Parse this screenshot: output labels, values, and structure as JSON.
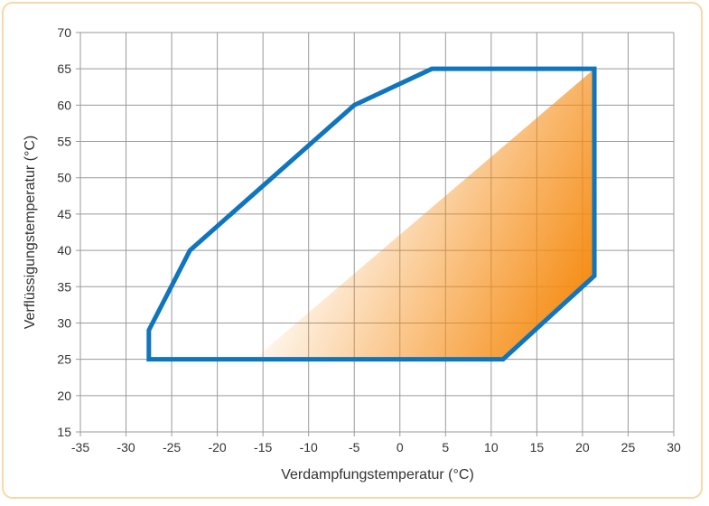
{
  "chart_data": {
    "type": "area",
    "xlabel": "Verdampfungstemperatur (°C)",
    "ylabel": "Verflüssigungstemperatur (°C)",
    "xlim": [
      -35,
      30
    ],
    "ylim": [
      15,
      70
    ],
    "x_ticks": [
      -35,
      -30,
      -25,
      -20,
      -15,
      -10,
      -5,
      0,
      5,
      10,
      15,
      20,
      25,
      30
    ],
    "y_ticks": [
      15,
      20,
      25,
      30,
      35,
      40,
      45,
      50,
      55,
      60,
      65,
      70
    ],
    "grid": true,
    "series": [
      {
        "kind": "envelope-outline",
        "points": [
          [
            -27.5,
            25
          ],
          [
            11.3,
            25
          ],
          [
            21.3,
            36.5
          ],
          [
            21.3,
            65
          ],
          [
            3.5,
            65
          ],
          [
            -5,
            60
          ],
          [
            -23,
            40
          ],
          [
            -27.5,
            29
          ],
          [
            -27.5,
            25
          ]
        ]
      },
      {
        "kind": "shaded-region",
        "points": [
          [
            -16,
            25
          ],
          [
            11.3,
            25
          ],
          [
            21.3,
            36.5
          ],
          [
            21.3,
            65
          ]
        ]
      }
    ]
  },
  "colors": {
    "outline": "#0f75bd",
    "fill": "#f58b12",
    "grid": "#9a9a9a",
    "frame": "#f6d9a6"
  }
}
